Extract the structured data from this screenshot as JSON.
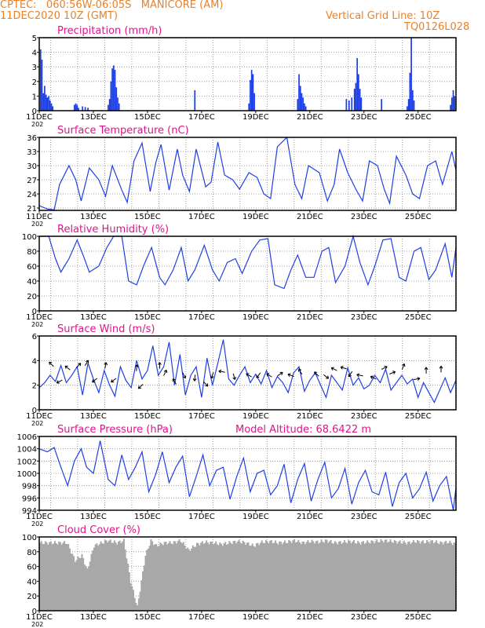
{
  "header": {
    "line1": "CPTEC:   060:56W-06:05S   MANICORE (AM)",
    "line2": "11DEC2020 10Z (GMT)",
    "right1": "Vertical Grid Line: 10Z",
    "right2": "TQ0126L028"
  },
  "colors": {
    "header": "#e8822a",
    "title": "#e0148c",
    "series": "#1f3fe6",
    "cloud": "#a8a8a8",
    "wind_arrow": "#000000"
  },
  "x_ticks": [
    "11DEC",
    "13DEC",
    "15DEC",
    "17DEC",
    "19DEC",
    "21DEC",
    "23DEC",
    "25DEC"
  ],
  "x_year_fragment": "202",
  "panels": [
    {
      "id": "precipitation",
      "title": "Precipitation (mm/h)",
      "yticks": [
        "0",
        "1",
        "2",
        "3",
        "4",
        "5"
      ]
    },
    {
      "id": "temperature",
      "title": "Surface Temperature (nC)",
      "yticks": [
        "21",
        "24",
        "27",
        "30",
        "33",
        "36"
      ]
    },
    {
      "id": "humidity",
      "title": "Relative Humidity (%)",
      "yticks": [
        "0",
        "20",
        "40",
        "60",
        "80",
        "100"
      ]
    },
    {
      "id": "wind",
      "title": "Surface Wind (m/s)",
      "yticks": [
        "0",
        "2",
        "4",
        "6"
      ]
    },
    {
      "id": "pressure",
      "title": "Surface Pressure (hPa)",
      "extra": "Model Altitude: 68.6422 m",
      "yticks": [
        "994",
        "996",
        "998",
        "1000",
        "1002",
        "1004",
        "1006"
      ]
    },
    {
      "id": "cloud",
      "title": "Cloud Cover (%)",
      "yticks": [
        "0",
        "20",
        "40",
        "60",
        "80",
        "100"
      ]
    }
  ],
  "chart_data": [
    {
      "type": "bar",
      "title": "Precipitation (mm/h)",
      "x_unit": "days since 11DEC 00Z",
      "ylim": [
        0,
        5
      ],
      "points": [
        [
          0.05,
          4.2
        ],
        [
          0.1,
          3.5
        ],
        [
          0.15,
          1.2
        ],
        [
          0.2,
          1.7
        ],
        [
          0.25,
          1.1
        ],
        [
          0.3,
          0.9
        ],
        [
          0.35,
          1.0
        ],
        [
          0.4,
          0.7
        ],
        [
          0.45,
          0.5
        ],
        [
          0.5,
          0.3
        ],
        [
          1.3,
          0.4
        ],
        [
          1.35,
          0.5
        ],
        [
          1.4,
          0.4
        ],
        [
          1.45,
          0.2
        ],
        [
          1.6,
          0.3
        ],
        [
          1.7,
          0.25
        ],
        [
          1.8,
          0.2
        ],
        [
          2.55,
          0.4
        ],
        [
          2.6,
          0.8
        ],
        [
          2.65,
          2.0
        ],
        [
          2.7,
          2.9
        ],
        [
          2.75,
          3.1
        ],
        [
          2.8,
          2.8
        ],
        [
          2.85,
          1.6
        ],
        [
          2.9,
          0.9
        ],
        [
          2.95,
          0.5
        ],
        [
          5.75,
          1.4
        ],
        [
          7.75,
          0.5
        ],
        [
          7.8,
          2.1
        ],
        [
          7.85,
          2.8
        ],
        [
          7.9,
          2.5
        ],
        [
          7.95,
          1.2
        ],
        [
          9.55,
          0.8
        ],
        [
          9.6,
          2.5
        ],
        [
          9.65,
          1.7
        ],
        [
          9.7,
          1.2
        ],
        [
          9.75,
          0.9
        ],
        [
          9.8,
          0.5
        ],
        [
          9.85,
          0.3
        ],
        [
          11.35,
          0.8
        ],
        [
          11.45,
          0.7
        ],
        [
          11.55,
          0.9
        ],
        [
          11.65,
          1.5
        ],
        [
          11.7,
          1.9
        ],
        [
          11.75,
          3.6
        ],
        [
          11.8,
          2.5
        ],
        [
          11.85,
          1.5
        ],
        [
          11.9,
          0.9
        ],
        [
          12.65,
          0.8
        ],
        [
          13.6,
          0.3
        ],
        [
          13.65,
          0.8
        ],
        [
          13.7,
          2.6
        ],
        [
          13.75,
          5.0
        ],
        [
          13.8,
          1.4
        ],
        [
          13.85,
          0.7
        ],
        [
          15.2,
          0.4
        ],
        [
          15.25,
          0.9
        ],
        [
          15.3,
          1.4
        ],
        [
          15.35,
          1.0
        ]
      ]
    },
    {
      "type": "line",
      "title": "Surface Temperature (nC)",
      "ylim": [
        20.5,
        36
      ],
      "x": [
        0,
        0.3,
        0.55,
        0.75,
        1.1,
        1.35,
        1.55,
        1.85,
        2.2,
        2.45,
        2.7,
        3.05,
        3.25,
        3.5,
        3.8,
        4.1,
        4.3,
        4.5,
        4.8,
        5.1,
        5.3,
        5.55,
        5.8,
        6.15,
        6.35,
        6.6,
        6.85,
        7.15,
        7.4,
        7.75,
        8.05,
        8.3,
        8.55,
        8.8,
        9.15,
        9.45,
        9.7,
        9.95,
        10.35,
        10.65,
        10.9,
        11.1,
        11.4,
        11.7,
        11.95,
        12.2,
        12.5,
        12.75,
        12.95,
        13.2,
        13.55,
        13.8,
        14.05,
        14.35,
        14.65,
        14.9,
        15.25,
        15.4
      ],
      "y": [
        21.5,
        20.8,
        20.6,
        26,
        30,
        27,
        22.5,
        29.5,
        27,
        23.5,
        30,
        24.8,
        22.2,
        31,
        34.8,
        24.5,
        30.5,
        34.5,
        24.8,
        33.5,
        28,
        24.5,
        33.5,
        25.5,
        26.5,
        35,
        28,
        27,
        25,
        28.5,
        27.5,
        24,
        23,
        34,
        36,
        26,
        23,
        30,
        28.5,
        22.5,
        26,
        33.5,
        28.5,
        25,
        22.5,
        31,
        30,
        25,
        22,
        32,
        28,
        24,
        23,
        30,
        31,
        26,
        33,
        29
      ]
    },
    {
      "type": "line",
      "title": "Relative Humidity (%)",
      "ylim": [
        0,
        100
      ],
      "x": [
        0,
        0.35,
        0.6,
        0.8,
        1.1,
        1.4,
        1.65,
        1.85,
        2.2,
        2.5,
        2.75,
        3.05,
        3.3,
        3.6,
        3.85,
        4.15,
        4.45,
        4.65,
        4.95,
        5.25,
        5.5,
        5.75,
        6.1,
        6.4,
        6.65,
        6.95,
        7.25,
        7.5,
        7.85,
        8.15,
        8.45,
        8.7,
        9.05,
        9.3,
        9.55,
        9.85,
        10.15,
        10.45,
        10.7,
        10.95,
        11.3,
        11.6,
        11.85,
        12.15,
        12.4,
        12.7,
        13.0,
        13.3,
        13.55,
        13.85,
        14.1,
        14.4,
        14.65,
        15.0,
        15.25,
        15.4
      ],
      "y": [
        100,
        100,
        70,
        52,
        70,
        95,
        72,
        52,
        60,
        85,
        100,
        100,
        40,
        35,
        60,
        85,
        45,
        35,
        55,
        85,
        40,
        55,
        88,
        55,
        40,
        65,
        70,
        50,
        80,
        95,
        97,
        35,
        30,
        55,
        75,
        45,
        45,
        80,
        85,
        38,
        60,
        100,
        65,
        35,
        60,
        95,
        97,
        45,
        40,
        80,
        85,
        42,
        55,
        90,
        45,
        85
      ]
    },
    {
      "type": "line",
      "title": "Surface Wind (m/s)",
      "ylim": [
        0,
        6
      ],
      "x": [
        0,
        0.2,
        0.4,
        0.6,
        0.8,
        1.0,
        1.2,
        1.4,
        1.6,
        1.8,
        2.0,
        2.2,
        2.4,
        2.6,
        2.8,
        3.0,
        3.2,
        3.4,
        3.6,
        3.8,
        4.0,
        4.2,
        4.4,
        4.6,
        4.8,
        5.0,
        5.2,
        5.4,
        5.6,
        5.8,
        6.0,
        6.2,
        6.4,
        6.6,
        6.8,
        7.0,
        7.2,
        7.4,
        7.6,
        7.8,
        8.0,
        8.2,
        8.4,
        8.6,
        8.8,
        9.0,
        9.2,
        9.4,
        9.6,
        9.8,
        10.0,
        10.2,
        10.4,
        10.6,
        10.8,
        11.0,
        11.2,
        11.4,
        11.6,
        11.8,
        12.0,
        12.2,
        12.4,
        12.6,
        12.8,
        13.0,
        13.2,
        13.4,
        13.6,
        13.8,
        14.0,
        14.2,
        14.4,
        14.6,
        14.8,
        15.0,
        15.2,
        15.4
      ],
      "y": [
        1.8,
        2.2,
        2.8,
        2.3,
        3.6,
        2.2,
        2.8,
        3.5,
        1.2,
        3.8,
        2.5,
        1.4,
        3.2,
        2.0,
        1.1,
        3.5,
        2.4,
        1.8,
        4.0,
        2.5,
        3.2,
        5.2,
        2.8,
        3.5,
        5.5,
        2.0,
        4.5,
        1.2,
        2.8,
        3.5,
        1.0,
        4.2,
        2.0,
        3.8,
        5.7,
        2.5,
        2.0,
        2.8,
        3.5,
        2.2,
        2.9,
        2.1,
        3.2,
        1.8,
        2.7,
        2.2,
        1.4,
        3.0,
        3.5,
        1.5,
        2.4,
        3.0,
        2.0,
        1.0,
        2.8,
        2.2,
        1.6,
        3.4,
        2.0,
        2.6,
        1.7,
        2.0,
        2.8,
        2.2,
        3.3,
        1.6,
        2.2,
        2.8,
        2.1,
        2.5,
        1.0,
        2.2,
        1.4,
        0.6,
        1.6,
        2.6,
        1.4,
        2.4
      ]
    },
    {
      "type": "line",
      "title": "Surface Pressure (hPa)",
      "ylim": [
        994,
        1006
      ],
      "x": [
        0,
        0.3,
        0.55,
        0.8,
        1.05,
        1.3,
        1.55,
        1.75,
        2.0,
        2.25,
        2.55,
        2.8,
        3.05,
        3.3,
        3.55,
        3.8,
        4.05,
        4.3,
        4.55,
        4.8,
        5.05,
        5.3,
        5.55,
        5.8,
        6.05,
        6.3,
        6.55,
        6.8,
        7.05,
        7.3,
        7.55,
        7.8,
        8.05,
        8.3,
        8.55,
        8.8,
        9.05,
        9.3,
        9.55,
        9.8,
        10.05,
        10.3,
        10.55,
        10.8,
        11.05,
        11.3,
        11.55,
        11.8,
        12.05,
        12.3,
        12.55,
        12.8,
        13.05,
        13.3,
        13.55,
        13.8,
        14.05,
        14.3,
        14.55,
        14.8,
        15.05,
        15.3,
        15.4
      ],
      "y": [
        1004,
        1003.5,
        1004.2,
        1001,
        998,
        1002,
        1004,
        1001,
        1000,
        1005.3,
        999,
        998,
        1003,
        999,
        1001,
        1003.5,
        997,
        999.8,
        1003.5,
        998.5,
        1001,
        1002.8,
        996.2,
        999.5,
        1003,
        998,
        1000.5,
        1001,
        995.8,
        999.5,
        1002.5,
        997,
        1000,
        1000.5,
        996.5,
        998,
        1001.5,
        995.2,
        999,
        1001.6,
        995.5,
        999,
        1001.8,
        996,
        997.5,
        1000.8,
        995,
        998.5,
        1000.5,
        997,
        996.5,
        1000.2,
        994.6,
        998.5,
        1000,
        996,
        997.5,
        1000.2,
        995.5,
        998,
        999.5,
        994,
        997.7
      ]
    },
    {
      "type": "area",
      "title": "Cloud Cover (%)",
      "ylim": [
        0,
        100
      ],
      "x": [
        0,
        1.0,
        1.3,
        1.55,
        1.75,
        2.0,
        2.5,
        2.85,
        3.1,
        3.35,
        3.6,
        3.9,
        4.1,
        4.3,
        4.6,
        4.9,
        5.2,
        5.5,
        5.8,
        6.1,
        6.4,
        6.7,
        7.0,
        7.3,
        7.6,
        7.9,
        8.2,
        8.5,
        8.8,
        9.1,
        9.4,
        9.7,
        10.0,
        10.3,
        10.6,
        10.9,
        11.2,
        11.5,
        11.8,
        12.1,
        12.4,
        12.7,
        13.0,
        13.3,
        13.6,
        13.9,
        14.2,
        14.5,
        14.8,
        15.1,
        15.4
      ],
      "y": [
        92,
        92,
        68,
        75,
        55,
        88,
        95,
        92,
        95,
        40,
        5,
        75,
        95,
        88,
        92,
        92,
        95,
        82,
        90,
        93,
        92,
        90,
        92,
        94,
        92,
        88,
        93,
        94,
        92,
        93,
        95,
        92,
        94,
        93,
        95,
        92,
        93,
        94,
        92,
        93,
        94,
        95,
        94,
        93,
        92,
        94,
        93,
        94,
        92,
        93,
        90
      ]
    }
  ],
  "wind_arrows": [
    {
      "x": 0.45,
      "y": 3.7,
      "dx": -1,
      "dy": 1
    },
    {
      "x": 0.75,
      "y": 2.3,
      "dx": -1,
      "dy": -0.5
    },
    {
      "x": 1.05,
      "y": 3.4,
      "dx": -1,
      "dy": 0.8
    },
    {
      "x": 1.45,
      "y": 3.6,
      "dx": 1,
      "dy": 1
    },
    {
      "x": 1.75,
      "y": 3.8,
      "dx": 0.6,
      "dy": 1
    },
    {
      "x": 2.05,
      "y": 2.4,
      "dx": -1,
      "dy": -0.8
    },
    {
      "x": 2.45,
      "y": 3.6,
      "dx": 0.2,
      "dy": 1
    },
    {
      "x": 2.75,
      "y": 2.4,
      "dx": -0.8,
      "dy": -0.6
    },
    {
      "x": 3.6,
      "y": 3.4,
      "dx": 0.1,
      "dy": 1
    },
    {
      "x": 3.75,
      "y": 1.9,
      "dx": -1,
      "dy": -0.9
    },
    {
      "x": 4.45,
      "y": 3.6,
      "dx": 0,
      "dy": 1
    },
    {
      "x": 4.65,
      "y": 3.0,
      "dx": 0.5,
      "dy": 1
    },
    {
      "x": 5.0,
      "y": 2.3,
      "dx": -0.6,
      "dy": 1
    },
    {
      "x": 5.35,
      "y": 2.8,
      "dx": 0.5,
      "dy": -1
    },
    {
      "x": 5.75,
      "y": 2.6,
      "dx": -0.1,
      "dy": -1
    },
    {
      "x": 6.15,
      "y": 2.1,
      "dx": 1,
      "dy": -1
    },
    {
      "x": 6.4,
      "y": 2.8,
      "dx": -0.3,
      "dy": -0.9
    },
    {
      "x": 6.75,
      "y": 3.1,
      "dx": -1,
      "dy": 0.2
    },
    {
      "x": 7.2,
      "y": 2.7,
      "dx": 0.3,
      "dy": -1
    },
    {
      "x": 7.75,
      "y": 2.8,
      "dx": -1,
      "dy": 0.6
    },
    {
      "x": 8.1,
      "y": 2.8,
      "dx": -0.6,
      "dy": -0.8
    },
    {
      "x": 8.5,
      "y": 2.8,
      "dx": -0.8,
      "dy": 0.5
    },
    {
      "x": 8.9,
      "y": 2.9,
      "dx": 0.9,
      "dy": 0.6
    },
    {
      "x": 9.3,
      "y": 2.8,
      "dx": -0.8,
      "dy": 0.3
    },
    {
      "x": 9.65,
      "y": 3.1,
      "dx": -0.4,
      "dy": 0.7
    },
    {
      "x": 10.25,
      "y": 2.9,
      "dx": -0.5,
      "dy": 0.5
    },
    {
      "x": 10.6,
      "y": 2.7,
      "dx": 0.8,
      "dy": -0.6
    },
    {
      "x": 10.9,
      "y": 3.3,
      "dx": -1,
      "dy": 0.5
    },
    {
      "x": 11.25,
      "y": 3.4,
      "dx": -1,
      "dy": 0.3
    },
    {
      "x": 11.5,
      "y": 2.9,
      "dx": -0.5,
      "dy": -0.8
    },
    {
      "x": 11.85,
      "y": 2.8,
      "dx": -1,
      "dy": 0.2
    },
    {
      "x": 12.35,
      "y": 2.6,
      "dx": -0.8,
      "dy": 0.4
    },
    {
      "x": 12.75,
      "y": 3.4,
      "dx": 1,
      "dy": 0.5
    },
    {
      "x": 13.05,
      "y": 3.0,
      "dx": 1,
      "dy": 0.4
    },
    {
      "x": 13.45,
      "y": 3.5,
      "dx": 0.4,
      "dy": 1
    },
    {
      "x": 13.95,
      "y": 2.5,
      "dx": 1,
      "dy": 0.2
    },
    {
      "x": 14.3,
      "y": 3.2,
      "dx": 0,
      "dy": 1
    },
    {
      "x": 14.85,
      "y": 3.3,
      "dx": 0,
      "dy": 1
    }
  ]
}
